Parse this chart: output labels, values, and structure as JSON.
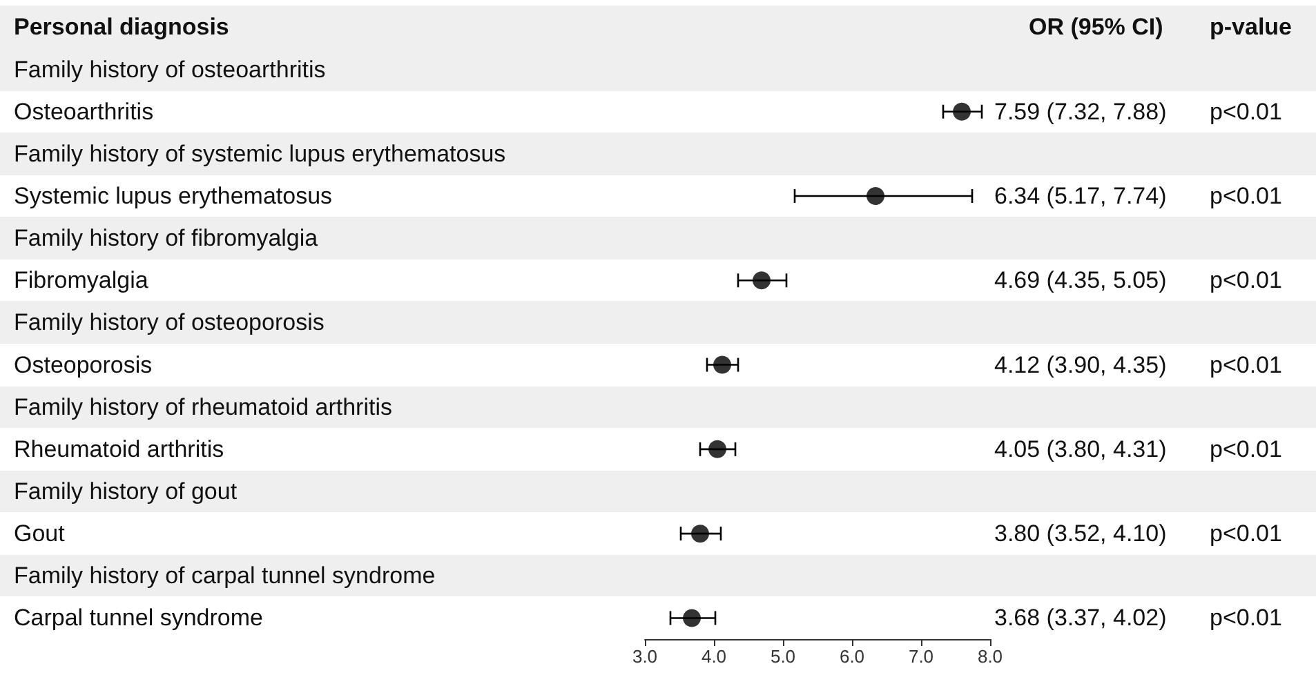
{
  "chart_data": {
    "type": "scatter",
    "orientation": "horizontal",
    "ylabel": "Personal diagnosis",
    "categories": [
      "Family history of osteoarthritis",
      "Osteoarthritis",
      "Family history of systemic lupus erythematosus",
      "Systemic lupus erythematosus",
      "Family history of fibromyalgia",
      "Fibromyalgia",
      "Family history of osteoporosis",
      "Osteoporosis",
      "Family history of rheumatoid arthritis",
      "Rheumatoid arthritis",
      "Family history of gout",
      "Gout",
      "Family history of carpal tunnel syndrome",
      "Carpal tunnel syndrome"
    ],
    "values": [
      null,
      7.59,
      null,
      6.34,
      null,
      4.69,
      null,
      4.12,
      null,
      4.05,
      null,
      3.8,
      null,
      3.68
    ],
    "errors": [
      null,
      [
        7.32,
        7.88
      ],
      null,
      [
        5.17,
        7.74
      ],
      null,
      [
        4.35,
        5.05
      ],
      null,
      [
        3.9,
        4.35
      ],
      null,
      [
        3.8,
        4.31
      ],
      null,
      [
        3.52,
        4.1
      ],
      null,
      [
        3.37,
        4.02
      ]
    ],
    "value_labels": [
      null,
      "7.59 (7.32, 7.88)",
      null,
      "6.34 (5.17, 7.74)",
      null,
      "4.69 (4.35, 5.05)",
      null,
      "4.12 (3.90, 4.35)",
      null,
      "4.05 (3.80, 4.31)",
      null,
      "3.80 (3.52, 4.10)",
      null,
      "3.68 (3.37, 4.02)"
    ],
    "color": "#000000",
    "marker": "circle",
    "grid": false,
    "xlim": [
      3,
      8
    ],
    "xticks": [
      {
        "value": 3,
        "label": "3.0"
      },
      {
        "value": 4,
        "label": "4.0"
      },
      {
        "value": 5,
        "label": "5.0"
      },
      {
        "value": 6,
        "label": "6.0"
      },
      {
        "value": 7,
        "label": "7.0"
      },
      {
        "value": 8,
        "label": "8.0"
      }
    ],
    "annotations": [
      "OR (95% CI)",
      "p-value",
      "p<0.01",
      "p<0.01",
      "p<0.01",
      "p<0.01",
      "p<0.01",
      "p<0.01",
      "p<0.01"
    ]
  }
}
